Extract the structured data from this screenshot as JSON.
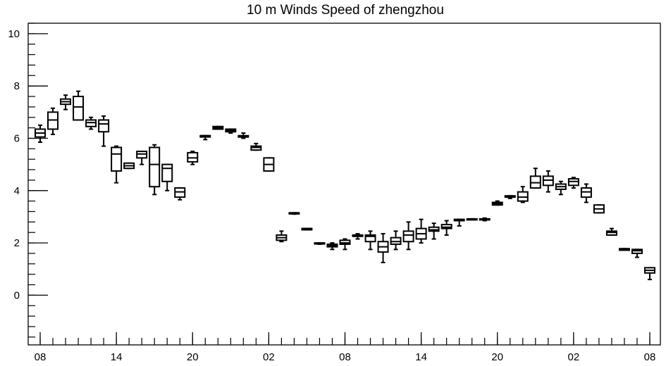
{
  "chart_data": {
    "type": "box",
    "title": "10 m Winds Speed of zhengzhou",
    "xlabel": "",
    "ylabel": "",
    "ylim": [
      -1.9,
      10.4
    ],
    "yticks": [
      0,
      2,
      4,
      6,
      8,
      10
    ],
    "xlim": [
      0,
      48
    ],
    "xticks": [
      {
        "x": 0,
        "label": "08"
      },
      {
        "x": 6,
        "label": "14"
      },
      {
        "x": 12,
        "label": "20"
      },
      {
        "x": 18,
        "label": "02"
      },
      {
        "x": 24,
        "label": "08"
      },
      {
        "x": 30,
        "label": "14"
      },
      {
        "x": 36,
        "label": "20"
      },
      {
        "x": 42,
        "label": "02"
      },
      {
        "x": 48,
        "label": "08"
      }
    ],
    "boxes": [
      {
        "x": 0,
        "min": 5.85,
        "q1": 6.05,
        "median": 6.2,
        "q3": 6.35,
        "max": 6.5
      },
      {
        "x": 1,
        "min": 6.15,
        "q1": 6.35,
        "median": 6.7,
        "q3": 7.0,
        "max": 7.15
      },
      {
        "x": 2,
        "min": 7.1,
        "q1": 7.3,
        "median": 7.4,
        "q3": 7.5,
        "max": 7.65
      },
      {
        "x": 3,
        "min": 6.7,
        "q1": 6.7,
        "median": 7.2,
        "q3": 7.6,
        "max": 7.8
      },
      {
        "x": 4,
        "min": 6.35,
        "q1": 6.45,
        "median": 6.6,
        "q3": 6.7,
        "max": 6.8
      },
      {
        "x": 5,
        "min": 5.7,
        "q1": 6.25,
        "median": 6.55,
        "q3": 6.7,
        "max": 6.85
      },
      {
        "x": 6,
        "min": 4.3,
        "q1": 4.75,
        "median": 5.4,
        "q3": 5.65,
        "max": 5.7
      },
      {
        "x": 7,
        "min": 4.85,
        "q1": 4.85,
        "median": 4.95,
        "q3": 5.05,
        "max": 5.05
      },
      {
        "x": 8,
        "min": 5.0,
        "q1": 5.25,
        "median": 5.4,
        "q3": 5.5,
        "max": 5.5
      },
      {
        "x": 9,
        "min": 3.85,
        "q1": 4.15,
        "median": 5.0,
        "q3": 5.65,
        "max": 5.75
      },
      {
        "x": 10,
        "min": 4.0,
        "q1": 4.35,
        "median": 4.85,
        "q3": 5.0,
        "max": 5.0
      },
      {
        "x": 11,
        "min": 3.65,
        "q1": 3.75,
        "median": 3.95,
        "q3": 4.1,
        "max": 4.1
      },
      {
        "x": 12,
        "min": 5.0,
        "q1": 5.1,
        "median": 5.25,
        "q3": 5.45,
        "max": 5.5
      },
      {
        "x": 13,
        "min": 5.95,
        "q1": 6.05,
        "median": 6.1,
        "q3": 6.1,
        "max": 6.1
      },
      {
        "x": 14,
        "min": 6.35,
        "q1": 6.35,
        "median": 6.4,
        "q3": 6.45,
        "max": 6.45
      },
      {
        "x": 15,
        "min": 6.2,
        "q1": 6.25,
        "median": 6.3,
        "q3": 6.35,
        "max": 6.35
      },
      {
        "x": 16,
        "min": 6.0,
        "q1": 6.05,
        "median": 6.05,
        "q3": 6.1,
        "max": 6.2
      },
      {
        "x": 17,
        "min": 5.55,
        "q1": 5.55,
        "median": 5.65,
        "q3": 5.7,
        "max": 5.8
      },
      {
        "x": 18,
        "min": 4.75,
        "q1": 4.75,
        "median": 5.0,
        "q3": 5.25,
        "max": 5.25
      },
      {
        "x": 19,
        "min": 2.05,
        "q1": 2.1,
        "median": 2.2,
        "q3": 2.3,
        "max": 2.45
      },
      {
        "x": 20,
        "min": 3.1,
        "q1": 3.15,
        "median": 3.15,
        "q3": 3.15,
        "max": 3.15
      },
      {
        "x": 21,
        "min": 2.5,
        "q1": 2.5,
        "median": 2.55,
        "q3": 2.55,
        "max": 2.55
      },
      {
        "x": 22,
        "min": 1.95,
        "q1": 1.98,
        "median": 1.98,
        "q3": 2.0,
        "max": 2.0
      },
      {
        "x": 23,
        "min": 1.75,
        "q1": 1.85,
        "median": 1.9,
        "q3": 1.95,
        "max": 2.0
      },
      {
        "x": 24,
        "min": 1.75,
        "q1": 1.95,
        "median": 2.0,
        "q3": 2.1,
        "max": 2.15
      },
      {
        "x": 25,
        "min": 2.15,
        "q1": 2.25,
        "median": 2.3,
        "q3": 2.3,
        "max": 2.35
      },
      {
        "x": 26,
        "min": 1.75,
        "q1": 2.05,
        "median": 2.25,
        "q3": 2.3,
        "max": 2.45
      },
      {
        "x": 27,
        "min": 1.25,
        "q1": 1.65,
        "median": 1.85,
        "q3": 2.05,
        "max": 2.35
      },
      {
        "x": 28,
        "min": 1.75,
        "q1": 1.95,
        "median": 2.05,
        "q3": 2.2,
        "max": 2.45
      },
      {
        "x": 29,
        "min": 1.75,
        "q1": 2.05,
        "median": 2.3,
        "q3": 2.45,
        "max": 2.8
      },
      {
        "x": 30,
        "min": 2.0,
        "q1": 2.15,
        "median": 2.35,
        "q3": 2.55,
        "max": 2.9
      },
      {
        "x": 31,
        "min": 2.15,
        "q1": 2.45,
        "median": 2.5,
        "q3": 2.6,
        "max": 2.75
      },
      {
        "x": 32,
        "min": 2.3,
        "q1": 2.55,
        "median": 2.6,
        "q3": 2.7,
        "max": 2.85
      },
      {
        "x": 33,
        "min": 2.65,
        "q1": 2.85,
        "median": 2.85,
        "q3": 2.9,
        "max": 2.9
      },
      {
        "x": 34,
        "min": 2.9,
        "q1": 2.9,
        "median": 2.9,
        "q3": 2.92,
        "max": 2.92
      },
      {
        "x": 35,
        "min": 2.85,
        "q1": 2.88,
        "median": 2.9,
        "q3": 2.92,
        "max": 2.95
      },
      {
        "x": 36,
        "min": 3.45,
        "q1": 3.45,
        "median": 3.5,
        "q3": 3.55,
        "max": 3.6
      },
      {
        "x": 37,
        "min": 3.7,
        "q1": 3.75,
        "median": 3.75,
        "q3": 3.8,
        "max": 3.8
      },
      {
        "x": 38,
        "min": 3.55,
        "q1": 3.6,
        "median": 3.75,
        "q3": 3.95,
        "max": 4.15
      },
      {
        "x": 39,
        "min": 4.1,
        "q1": 4.1,
        "median": 4.3,
        "q3": 4.55,
        "max": 4.85
      },
      {
        "x": 40,
        "min": 3.95,
        "q1": 4.2,
        "median": 4.4,
        "q3": 4.55,
        "max": 4.75
      },
      {
        "x": 41,
        "min": 3.85,
        "q1": 4.05,
        "median": 4.15,
        "q3": 4.25,
        "max": 4.35
      },
      {
        "x": 42,
        "min": 4.1,
        "q1": 4.2,
        "median": 4.35,
        "q3": 4.45,
        "max": 4.5
      },
      {
        "x": 43,
        "min": 3.55,
        "q1": 3.75,
        "median": 3.95,
        "q3": 4.1,
        "max": 4.25
      },
      {
        "x": 44,
        "min": 3.15,
        "q1": 3.15,
        "median": 3.3,
        "q3": 3.45,
        "max": 3.45
      },
      {
        "x": 45,
        "min": 2.3,
        "q1": 2.3,
        "median": 2.4,
        "q3": 2.45,
        "max": 2.55
      },
      {
        "x": 46,
        "min": 1.72,
        "q1": 1.72,
        "median": 1.75,
        "q3": 1.78,
        "max": 1.78
      },
      {
        "x": 47,
        "min": 1.45,
        "q1": 1.6,
        "median": 1.7,
        "q3": 1.75,
        "max": 1.75
      },
      {
        "x": 48,
        "min": 0.6,
        "q1": 0.85,
        "median": 0.95,
        "q3": 1.05,
        "max": 1.05
      }
    ],
    "grid": false,
    "legend": "none"
  }
}
